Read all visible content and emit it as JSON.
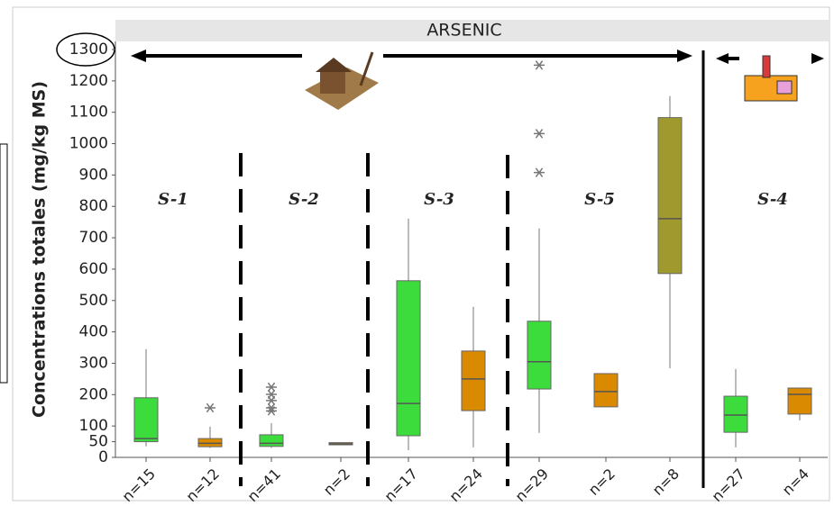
{
  "chart_data": {
    "type": "box",
    "title": "ARSENIC",
    "y_label": "Concentrations totales (mg/kg MS)",
    "categories": [
      "n=15",
      "n=12",
      "n=41",
      "n=2",
      "n=17",
      "n=24",
      "n=29",
      "n=2",
      "n=8",
      "n=27",
      "n=4"
    ],
    "boxes": [
      {
        "low": 35,
        "q1": 50,
        "median": 60,
        "q3": 190,
        "high": 345,
        "outliers": [],
        "color": "#3ddc3d"
      },
      {
        "low": 30,
        "q1": 34,
        "median": 45,
        "q3": 60,
        "high": 98,
        "outliers": [
          158
        ],
        "color": "#d98a00"
      },
      {
        "low": 30,
        "q1": 35,
        "median": 45,
        "q3": 72,
        "high": 109,
        "outliers": [
          224,
          201,
          181,
          158,
          148
        ],
        "color": "#3ddc3d"
      },
      {
        "low": 40,
        "q1": 40,
        "median": 43,
        "q3": 47,
        "high": 47,
        "outliers": [],
        "color": "#d98a00"
      },
      {
        "low": 23,
        "q1": 69,
        "median": 172,
        "q3": 563,
        "high": 761,
        "outliers": [],
        "color": "#3ddc3d"
      },
      {
        "low": 32,
        "q1": 149,
        "median": 250,
        "q3": 339,
        "high": 480,
        "outliers": [],
        "color": "#d98a00"
      },
      {
        "low": 78,
        "q1": 218,
        "median": 305,
        "q3": 434,
        "high": 730,
        "outliers": [
          1250,
          1032,
          908
        ],
        "color": "#3ddc3d"
      },
      {
        "low": 161,
        "q1": 161,
        "median": 210,
        "q3": 267,
        "high": 267,
        "outliers": [],
        "color": "#d98a00"
      },
      {
        "low": 284,
        "q1": 586,
        "median": 761,
        "q3": 1083,
        "high": 1152,
        "outliers": [],
        "color": "#a09a2e"
      },
      {
        "low": 32,
        "q1": 80,
        "median": 135,
        "q3": 195,
        "high": 282,
        "outliers": [],
        "color": "#3ddc3d"
      },
      {
        "low": 118,
        "q1": 138,
        "median": 201,
        "q3": 221,
        "high": 221,
        "outliers": [],
        "color": "#d98a00"
      }
    ],
    "section_labels": [
      "S-1",
      "S-2",
      "S-3",
      "S-5",
      "S-4"
    ],
    "ylim": [
      0,
      1300
    ],
    "yticks": [
      0,
      50,
      100,
      200,
      300,
      400,
      500,
      600,
      700,
      800,
      900,
      1000,
      1100,
      1200,
      1300
    ]
  }
}
